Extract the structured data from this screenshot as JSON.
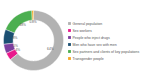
{
  "chart_data": {
    "type": "pie",
    "categories": [
      "General population",
      "Sex workers",
      "People who inject drugs",
      "Men who have sex with men",
      "Sex partners and clients of key populations",
      "Transgender people"
    ],
    "values": [
      64,
      4,
      5,
      8,
      18,
      0.8
    ],
    "value_labels": [
      "64%",
      "4%",
      "5%",
      "8%",
      "18%",
      "0.8%"
    ],
    "colors": [
      "#b2b2b2",
      "#e8198b",
      "#7b3f9e",
      "#1b4f72",
      "#4caf50",
      "#f5a623"
    ],
    "data_labels": true,
    "legend": "right"
  }
}
